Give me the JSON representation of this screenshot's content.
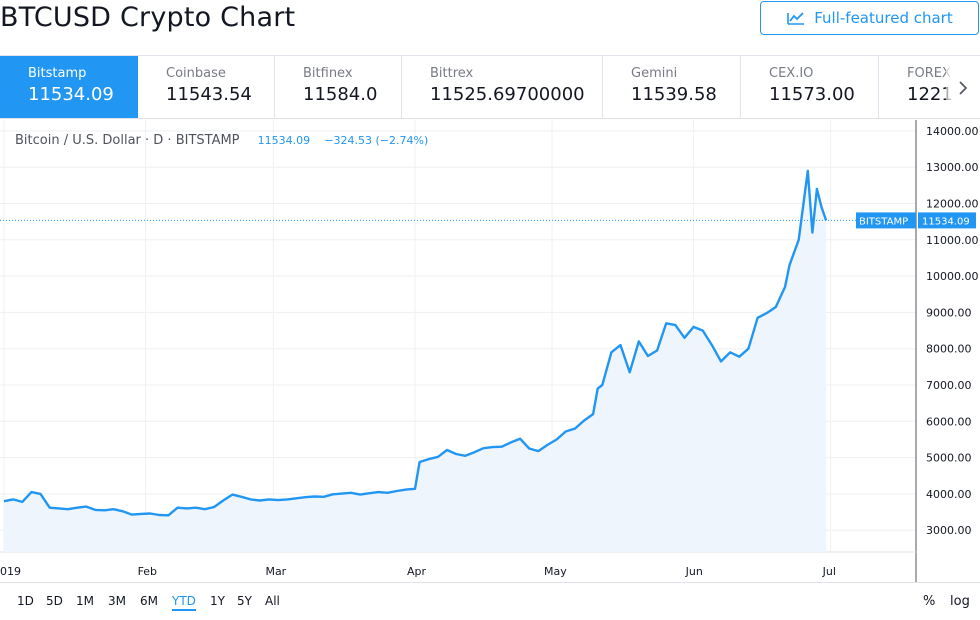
{
  "header": {
    "title": "BTCUSD Crypto Chart",
    "full_chart_label": "Full-featured chart",
    "full_chart_icon": "chart-line-icon"
  },
  "tabs": [
    {
      "exchange": "Bitstamp",
      "price": "11534.09",
      "active": true
    },
    {
      "exchange": "Coinbase",
      "price": "11543.54"
    },
    {
      "exchange": "Bitfinex",
      "price": "11584.0"
    },
    {
      "exchange": "Bittrex",
      "price": "11525.69700000"
    },
    {
      "exchange": "Gemini",
      "price": "11539.58"
    },
    {
      "exchange": "CEX.IO",
      "price": "11573.00"
    },
    {
      "exchange": "FOREX",
      "price": "1221"
    }
  ],
  "tabs_scroll_icon": "chevron-right-icon",
  "legend": {
    "symbol": "Bitcoin / U.S. Dollar · D · BITSTAMP",
    "last": "11534.09",
    "change": "−324.53 (−2.74%)"
  },
  "price_label": {
    "exchange": "BITSTAMP",
    "price": "11534.09"
  },
  "ranges": [
    "1D",
    "5D",
    "1M",
    "3M",
    "6M",
    "YTD",
    "1Y",
    "5Y",
    "All"
  ],
  "active_range": "YTD",
  "options": {
    "percent": "%",
    "log": "log"
  },
  "colors": {
    "accent": "#2196f3",
    "area_fill": "#eef5fd",
    "grid": "#eef0f3",
    "text": "#131722",
    "muted": "#787b86"
  },
  "chart_data": {
    "type": "area",
    "title": "Bitcoin / U.S. Dollar · D · BITSTAMP",
    "xlabel": "",
    "ylabel": "",
    "x_ticks": [
      "019",
      "Feb",
      "Mar",
      "Apr",
      "May",
      "Jun",
      "Jul"
    ],
    "y_ticks": [
      "3000.00",
      "4000.00",
      "5000.00",
      "6000.00",
      "7000.00",
      "8000.00",
      "9000.00",
      "10000.00",
      "11000.00",
      "12000.00",
      "13000.00",
      "14000.00"
    ],
    "ylim": [
      2400,
      14300
    ],
    "xlim": [
      "2019-01-01",
      "2019-07-14"
    ],
    "grid": true,
    "series": [
      {
        "x": [
          "2019-01-01",
          "2019-01-03",
          "2019-01-05",
          "2019-01-07",
          "2019-01-09",
          "2019-01-11",
          "2019-01-13",
          "2019-01-15",
          "2019-01-17",
          "2019-01-19",
          "2019-01-21",
          "2019-01-23",
          "2019-01-25",
          "2019-01-27",
          "2019-01-29",
          "2019-01-31",
          "2019-02-02",
          "2019-02-04",
          "2019-02-06",
          "2019-02-08",
          "2019-02-10",
          "2019-02-12",
          "2019-02-14",
          "2019-02-16",
          "2019-02-18",
          "2019-02-20",
          "2019-02-22",
          "2019-02-24",
          "2019-02-26",
          "2019-02-28",
          "2019-03-02",
          "2019-03-04",
          "2019-03-06",
          "2019-03-08",
          "2019-03-10",
          "2019-03-12",
          "2019-03-14",
          "2019-03-16",
          "2019-03-18",
          "2019-03-20",
          "2019-03-22",
          "2019-03-24",
          "2019-03-26",
          "2019-03-28",
          "2019-03-30",
          "2019-04-01",
          "2019-04-02",
          "2019-04-04",
          "2019-04-06",
          "2019-04-08",
          "2019-04-10",
          "2019-04-12",
          "2019-04-14",
          "2019-04-16",
          "2019-04-18",
          "2019-04-20",
          "2019-04-22",
          "2019-04-24",
          "2019-04-26",
          "2019-04-28",
          "2019-04-30",
          "2019-05-02",
          "2019-05-04",
          "2019-05-06",
          "2019-05-08",
          "2019-05-10",
          "2019-05-11",
          "2019-05-12",
          "2019-05-14",
          "2019-05-16",
          "2019-05-18",
          "2019-05-20",
          "2019-05-22",
          "2019-05-24",
          "2019-05-26",
          "2019-05-28",
          "2019-05-30",
          "2019-06-01",
          "2019-06-03",
          "2019-06-05",
          "2019-06-07",
          "2019-06-09",
          "2019-06-11",
          "2019-06-13",
          "2019-06-15",
          "2019-06-17",
          "2019-06-19",
          "2019-06-21",
          "2019-06-22",
          "2019-06-24",
          "2019-06-26",
          "2019-06-27",
          "2019-06-28",
          "2019-06-29",
          "2019-06-30"
        ],
        "y": [
          3800,
          3850,
          3780,
          4050,
          4000,
          3620,
          3600,
          3580,
          3620,
          3650,
          3560,
          3550,
          3580,
          3520,
          3430,
          3450,
          3460,
          3420,
          3410,
          3620,
          3600,
          3620,
          3580,
          3640,
          3820,
          3980,
          3920,
          3850,
          3820,
          3850,
          3830,
          3850,
          3880,
          3910,
          3930,
          3920,
          3990,
          4010,
          4030,
          3980,
          4020,
          4050,
          4030,
          4080,
          4120,
          4140,
          4880,
          4960,
          5020,
          5210,
          5100,
          5050,
          5150,
          5260,
          5290,
          5300,
          5420,
          5520,
          5250,
          5180,
          5350,
          5500,
          5720,
          5800,
          6020,
          6200,
          6900,
          7000,
          7900,
          8100,
          7350,
          8200,
          7800,
          7950,
          8700,
          8650,
          8300,
          8600,
          8500,
          8100,
          7650,
          7900,
          7780,
          8000,
          8850,
          8980,
          9150,
          9700,
          10300,
          11000,
          12900,
          11200,
          12400,
          11900,
          11534
        ]
      }
    ],
    "last_price": 11534.09
  }
}
